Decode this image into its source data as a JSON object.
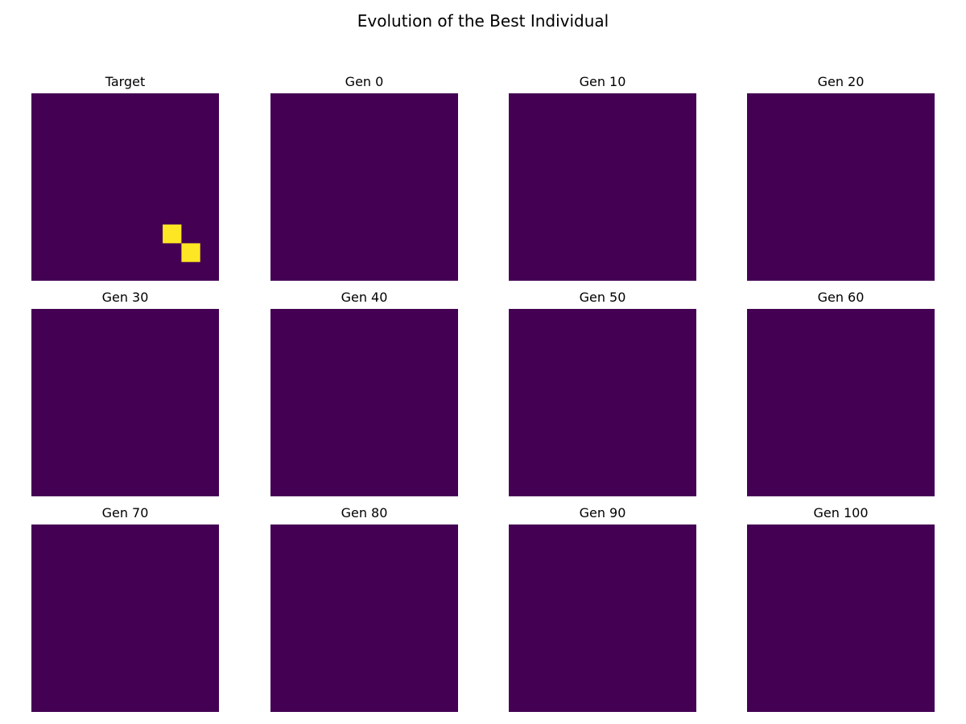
{
  "chart_data": {
    "type": "heatmap",
    "title": "Evolution of the Best Individual",
    "grid_size": 10,
    "colors": {
      "off": "#440154",
      "on": "#fde725"
    },
    "panels": [
      {
        "title": "Target",
        "on_cells": [
          [
            7,
            7
          ],
          [
            8,
            8
          ]
        ]
      },
      {
        "title": "Gen 0",
        "on_cells": []
      },
      {
        "title": "Gen 10",
        "on_cells": []
      },
      {
        "title": "Gen 20",
        "on_cells": []
      },
      {
        "title": "Gen 30",
        "on_cells": []
      },
      {
        "title": "Gen 40",
        "on_cells": []
      },
      {
        "title": "Gen 50",
        "on_cells": []
      },
      {
        "title": "Gen 60",
        "on_cells": []
      },
      {
        "title": "Gen 70",
        "on_cells": []
      },
      {
        "title": "Gen 80",
        "on_cells": []
      },
      {
        "title": "Gen 90",
        "on_cells": []
      },
      {
        "title": "Gen 100",
        "on_cells": []
      }
    ]
  }
}
